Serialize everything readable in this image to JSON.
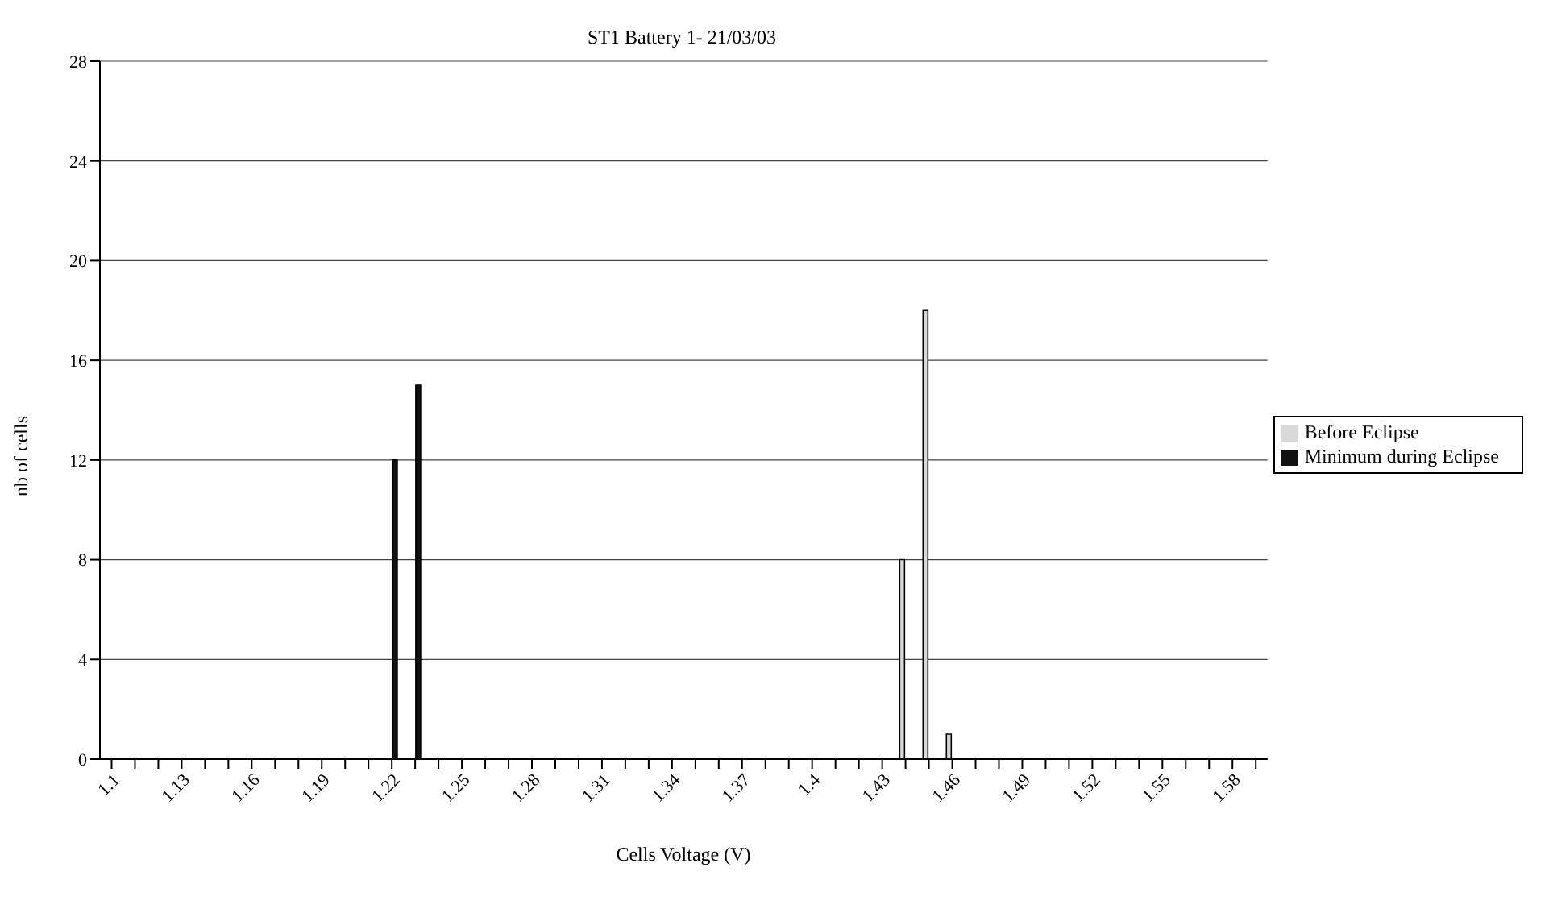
{
  "chart_data": {
    "type": "bar",
    "title": "ST1 Battery 1- 21/03/03",
    "xlabel": "Cells Voltage (V)",
    "ylabel": "nb of cells",
    "categories": [
      "1.1",
      null,
      null,
      "1.13",
      null,
      null,
      "1.16",
      null,
      null,
      "1.19",
      null,
      null,
      "1.22",
      null,
      null,
      "1.25",
      null,
      null,
      "1.28",
      null,
      null,
      "1.31",
      null,
      null,
      "1.34",
      null,
      null,
      "1.37",
      null,
      null,
      "1.4",
      null,
      null,
      "1.43",
      null,
      null,
      "1.46",
      null,
      null,
      "1.49",
      null,
      null,
      "1.52",
      null,
      null,
      "1.55",
      null,
      null,
      "1.58",
      null
    ],
    "series": [
      {
        "name": "Before Eclipse",
        "color": "#d9d9d9",
        "values": [
          0,
          0,
          0,
          0,
          0,
          0,
          0,
          0,
          0,
          0,
          0,
          0,
          0,
          0,
          0,
          0,
          0,
          0,
          0,
          0,
          0,
          0,
          0,
          0,
          0,
          0,
          0,
          0,
          0,
          0,
          0,
          0,
          0,
          0,
          8,
          18,
          1,
          0,
          0,
          0,
          0,
          0,
          0,
          0,
          0,
          0,
          0,
          0,
          0,
          0
        ]
      },
      {
        "name": "Minimum during Eclipse",
        "color": "#111111",
        "values": [
          0,
          0,
          0,
          0,
          0,
          0,
          0,
          0,
          0,
          0,
          0,
          0,
          12,
          15,
          0,
          0,
          0,
          0,
          0,
          0,
          0,
          0,
          0,
          0,
          0,
          0,
          0,
          0,
          0,
          0,
          0,
          0,
          0,
          0,
          0,
          0,
          0,
          0,
          0,
          0,
          0,
          0,
          0,
          0,
          0,
          0,
          0,
          0,
          0,
          0
        ]
      }
    ],
    "ylim": [
      0,
      28
    ],
    "yticks": [
      0,
      4,
      8,
      12,
      16,
      20,
      24,
      28
    ],
    "grid": "y",
    "legend": "right"
  }
}
